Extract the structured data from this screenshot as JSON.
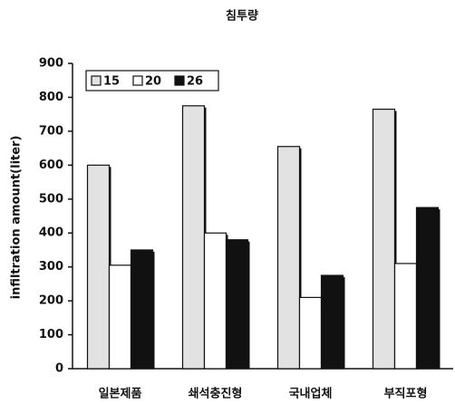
{
  "chart_data": {
    "type": "bar",
    "title": "침투량",
    "ylabel": "infiltration amount(liter)",
    "categories": [
      "일본제품",
      "쇄석충진형",
      "국내업체",
      "부직포형"
    ],
    "series": [
      {
        "name": "15",
        "color": "#e2e2e2",
        "values": [
          600,
          775,
          655,
          765
        ]
      },
      {
        "name": "20",
        "color": "#ffffff",
        "values": [
          305,
          400,
          210,
          310
        ]
      },
      {
        "name": "26",
        "color": "#111111",
        "values": [
          350,
          380,
          275,
          475
        ]
      }
    ],
    "ylim": [
      0,
      900
    ],
    "yticks": [
      0,
      100,
      200,
      300,
      400,
      500,
      600,
      700,
      800,
      900
    ],
    "grid": false,
    "legend": "upper left"
  }
}
